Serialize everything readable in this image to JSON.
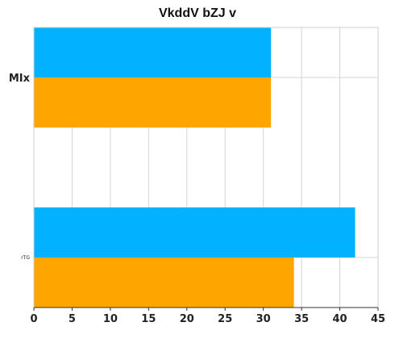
{
  "chart_data": {
    "type": "bar",
    "orientation": "horizontal",
    "title": "VkddV bZJ v",
    "xlabel": "",
    "ylabel": "",
    "xlim": [
      0,
      45
    ],
    "x_ticks": [
      0,
      5,
      10,
      15,
      20,
      25,
      30,
      35,
      40,
      45
    ],
    "categories": [
      "MIx",
      "rTG"
    ],
    "series": [
      {
        "color": "#00b2ff",
        "values": [
          31,
          42
        ]
      },
      {
        "color": "#ffa500",
        "values": [
          31,
          34
        ]
      }
    ],
    "grid": true,
    "legend": "none"
  }
}
